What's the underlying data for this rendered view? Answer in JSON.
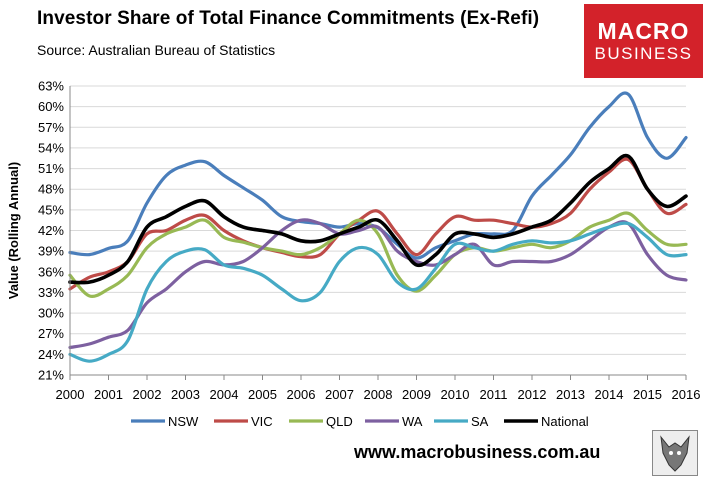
{
  "header": {
    "title": "Investor Share of Total Finance Commitments (Ex-Refi)",
    "source": "Source: Australian Bureau of Statistics"
  },
  "logo": {
    "line1": "MACRO",
    "line2": "BUSINESS"
  },
  "footer": {
    "url": "www.macrobusiness.com.au"
  },
  "icons": {
    "logo_image": "wolf-logo-icon"
  },
  "chart_data": {
    "type": "line",
    "title": "Investor Share of Total Finance Commitments (Ex-Refi)",
    "ylabel": "Value (Rolling Annual)",
    "xlabel": "",
    "ylim": [
      21,
      63
    ],
    "xlim": [
      2000,
      2016
    ],
    "yticks": [
      21,
      24,
      27,
      30,
      33,
      36,
      39,
      42,
      45,
      48,
      51,
      54,
      57,
      60,
      63
    ],
    "ytick_labels": [
      "21%",
      "24%",
      "27%",
      "30%",
      "33%",
      "36%",
      "39%",
      "42%",
      "45%",
      "48%",
      "51%",
      "54%",
      "57%",
      "60%",
      "63%"
    ],
    "xticks": [
      2000,
      2001,
      2002,
      2003,
      2004,
      2005,
      2006,
      2007,
      2008,
      2009,
      2010,
      2011,
      2012,
      2013,
      2014,
      2015,
      2016
    ],
    "xtick_labels": [
      "2000",
      "2001",
      "2002",
      "2003",
      "2004",
      "2005",
      "2006",
      "2007",
      "2008",
      "2009",
      "2010",
      "2011",
      "2012",
      "2013",
      "2014",
      "2015",
      "2016"
    ],
    "grid": "horizontal",
    "legend": "bottom",
    "series": [
      {
        "name": "NSW",
        "color": "#4a7ebb",
        "x": [
          2000,
          2000.5,
          2001,
          2001.5,
          2002,
          2002.5,
          2003,
          2003.5,
          2004,
          2004.5,
          2005,
          2005.5,
          2006,
          2006.5,
          2007,
          2007.5,
          2008,
          2008.5,
          2009,
          2009.5,
          2010,
          2010.5,
          2011,
          2011.5,
          2012,
          2012.5,
          2013,
          2013.5,
          2014,
          2014.5,
          2015,
          2015.5,
          2016
        ],
        "y": [
          38.8,
          38.5,
          39.4,
          40.5,
          46,
          50,
          51.5,
          52,
          50,
          48.2,
          46.4,
          44,
          43.3,
          43,
          42.5,
          43,
          42.4,
          40,
          38,
          39.5,
          40.5,
          41.5,
          41.5,
          42,
          47,
          50,
          53,
          57,
          60,
          61.8,
          55.5,
          52.5,
          55.5
        ]
      },
      {
        "name": "VIC",
        "color": "#be4b48",
        "x": [
          2000,
          2000.5,
          2001,
          2001.5,
          2002,
          2002.5,
          2003,
          2003.5,
          2004,
          2004.5,
          2005,
          2005.5,
          2006,
          2006.5,
          2007,
          2007.5,
          2008,
          2008.5,
          2009,
          2009.5,
          2010,
          2010.5,
          2011,
          2011.5,
          2012,
          2012.5,
          2013,
          2013.5,
          2014,
          2014.5,
          2015,
          2015.5,
          2016
        ],
        "y": [
          33.5,
          35.2,
          36,
          37.5,
          41.5,
          42,
          43.5,
          44.2,
          42,
          40.5,
          39.5,
          38.8,
          38.2,
          38.5,
          41.5,
          43.5,
          44.8,
          41.5,
          38.5,
          41.5,
          44,
          43.5,
          43.5,
          43,
          42.5,
          43,
          44.5,
          48,
          50.5,
          52.3,
          48,
          44.5,
          45.8
        ]
      },
      {
        "name": "QLD",
        "color": "#98b954",
        "x": [
          2000,
          2000.5,
          2001,
          2001.5,
          2002,
          2002.5,
          2003,
          2003.5,
          2004,
          2004.5,
          2005,
          2005.5,
          2006,
          2006.5,
          2007,
          2007.5,
          2008,
          2008.5,
          2009,
          2009.5,
          2010,
          2010.5,
          2011,
          2011.5,
          2012,
          2012.5,
          2013,
          2013.5,
          2014,
          2014.5,
          2015,
          2015.5,
          2016
        ],
        "y": [
          35.5,
          32.5,
          33.5,
          35.5,
          39.5,
          41.5,
          42.5,
          43.5,
          41,
          40.3,
          39.5,
          39,
          38.5,
          39.5,
          41.5,
          43.5,
          41.5,
          35.5,
          33.2,
          35.5,
          38.5,
          39.5,
          39,
          39.5,
          40,
          39.5,
          40.5,
          42.5,
          43.5,
          44.5,
          42,
          40,
          40
        ]
      },
      {
        "name": "WA",
        "color": "#7d60a0",
        "x": [
          2000,
          2000.5,
          2001,
          2001.5,
          2002,
          2002.5,
          2003,
          2003.5,
          2004,
          2004.5,
          2005,
          2005.5,
          2006,
          2006.5,
          2007,
          2007.5,
          2008,
          2008.5,
          2009,
          2009.5,
          2010,
          2010.5,
          2011,
          2011.5,
          2012,
          2012.5,
          2013,
          2013.5,
          2014,
          2014.5,
          2015,
          2015.5,
          2016
        ],
        "y": [
          25,
          25.5,
          26.5,
          27.5,
          31.5,
          33.5,
          36,
          37.5,
          37,
          37.5,
          39.5,
          42,
          43.5,
          43,
          41.5,
          42,
          42.5,
          39,
          37.5,
          37,
          38.5,
          40,
          37,
          37.5,
          37.5,
          37.5,
          38.5,
          40.5,
          42.5,
          43,
          38.5,
          35.5,
          34.8
        ]
      },
      {
        "name": "SA",
        "color": "#46aac5",
        "x": [
          2000,
          2000.5,
          2001,
          2001.5,
          2002,
          2002.5,
          2003,
          2003.5,
          2004,
          2004.5,
          2005,
          2005.5,
          2006,
          2006.5,
          2007,
          2007.5,
          2008,
          2008.5,
          2009,
          2009.5,
          2010,
          2010.5,
          2011,
          2011.5,
          2012,
          2012.5,
          2013,
          2013.5,
          2014,
          2014.5,
          2015,
          2015.5,
          2016
        ],
        "y": [
          24,
          23,
          24,
          26,
          33.5,
          37.5,
          39,
          39.2,
          37,
          36.5,
          35.5,
          33.5,
          31.8,
          33,
          37.5,
          39.5,
          38.5,
          34.5,
          33.5,
          36.5,
          40,
          39.5,
          39,
          40,
          40.5,
          40.2,
          40.5,
          41.5,
          42.5,
          43,
          41,
          38.5,
          38.5
        ]
      },
      {
        "name": "National",
        "color": "#000000",
        "x": [
          2000,
          2000.5,
          2001,
          2001.5,
          2002,
          2002.5,
          2003,
          2003.5,
          2004,
          2004.5,
          2005,
          2005.5,
          2006,
          2006.5,
          2007,
          2007.5,
          2008,
          2008.5,
          2009,
          2009.5,
          2010,
          2010.5,
          2011,
          2011.5,
          2012,
          2012.5,
          2013,
          2013.5,
          2014,
          2014.5,
          2015,
          2015.5,
          2016
        ],
        "y": [
          34.5,
          34.5,
          35.5,
          37.5,
          42.5,
          44,
          45.5,
          46.3,
          44,
          42.5,
          42,
          41.5,
          40.5,
          40.5,
          41.5,
          42.5,
          43.5,
          40.5,
          37,
          38.5,
          41.5,
          41.5,
          41,
          41.5,
          42.5,
          43.5,
          46,
          49,
          51,
          52.8,
          48,
          45.5,
          47
        ]
      }
    ]
  }
}
